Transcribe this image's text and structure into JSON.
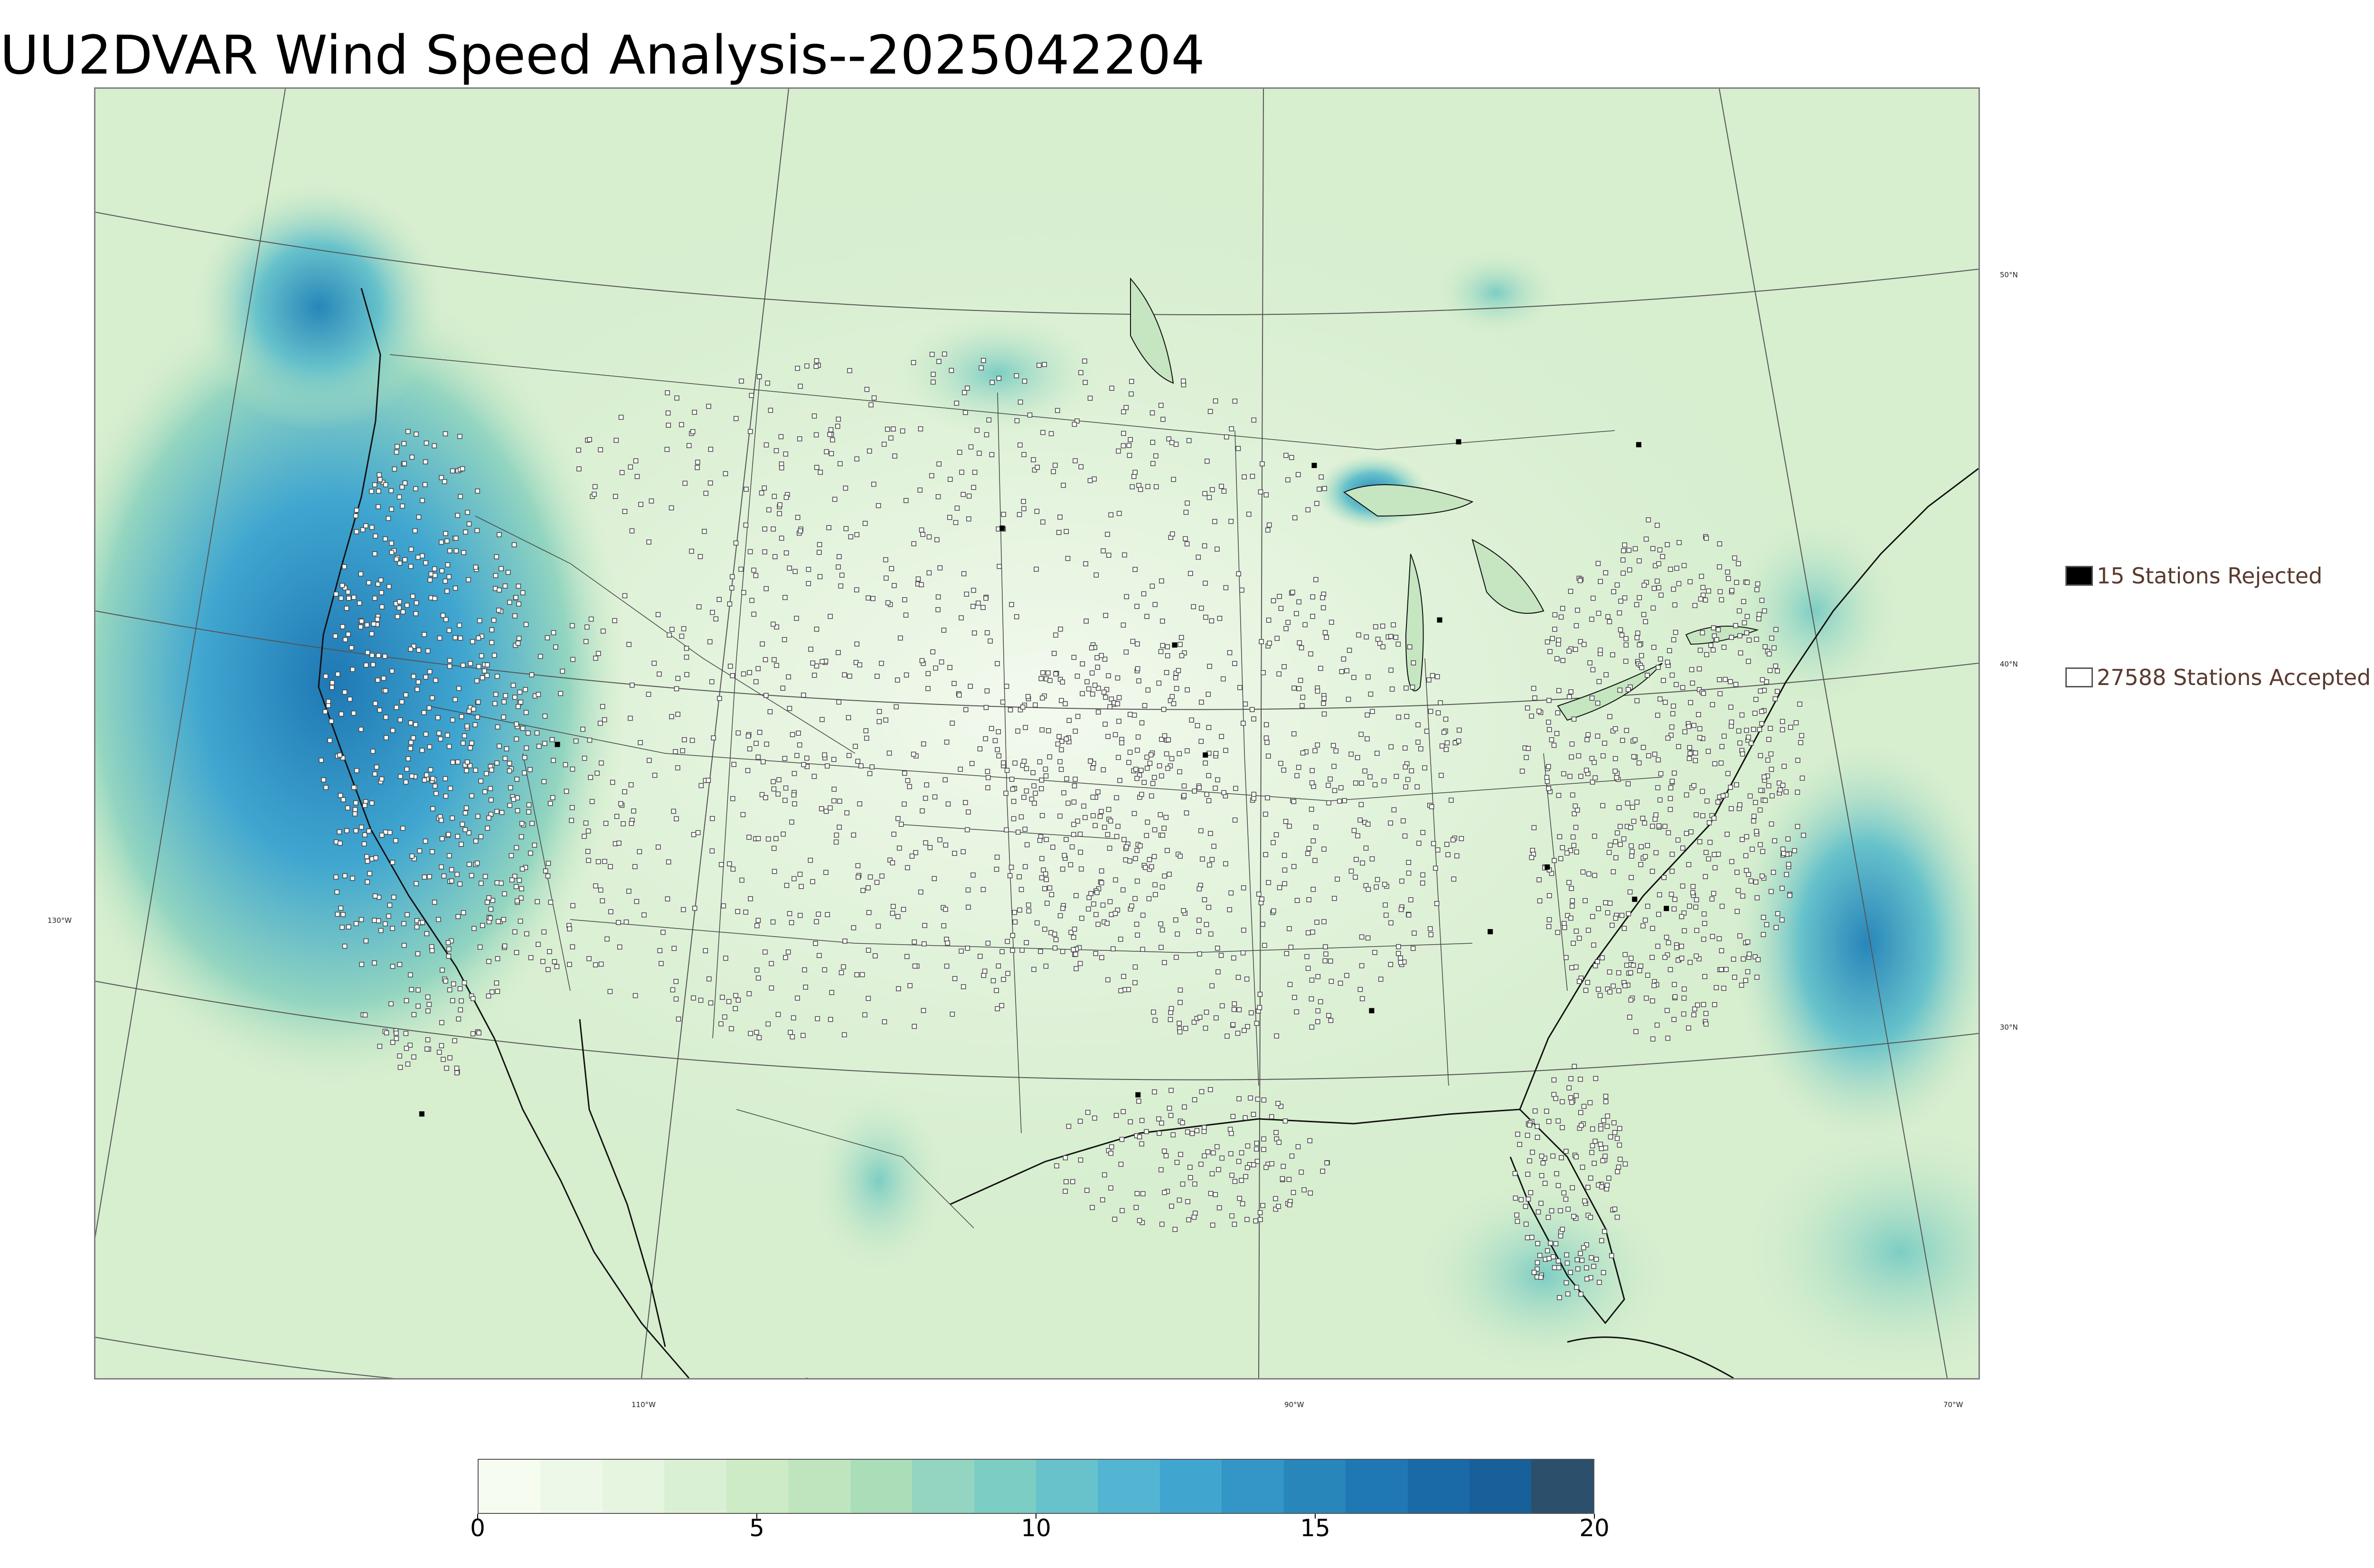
{
  "title": "UU2DVAR Wind Speed Analysis--2025042204",
  "legend": {
    "rejected_label": "15 Stations Rejected",
    "accepted_label": "27588 Stations Accepted",
    "rejected_color": "#000000",
    "accepted_color": "#ffffff"
  },
  "graticule": {
    "lat_labels": [
      "50°N",
      "40°N",
      "30°N"
    ],
    "lon_labels": [
      "130°W",
      "110°W",
      "90°W",
      "70°W"
    ]
  },
  "colorbar": {
    "min": 0,
    "max": 20,
    "tick_labels": [
      "0",
      "5",
      "10",
      "15",
      "20"
    ],
    "colors": [
      "#f7fcf0",
      "#eef8e9",
      "#e5f5df",
      "#daf0d4",
      "#cdebc5",
      "#bfe5bf",
      "#aadeb9",
      "#93d5c0",
      "#7ccdc4",
      "#67c2cb",
      "#53b5d2",
      "#40a6d0",
      "#3396c6",
      "#2886ba",
      "#1f78b4",
      "#1a6aa8",
      "#176099",
      "#2c4f6b"
    ]
  },
  "chart_data": {
    "type": "heatmap",
    "title": "UU2DVAR Wind Speed Analysis--2025042204",
    "colorbar_range": [
      0,
      20
    ],
    "colorbar_ticks": [
      0,
      5,
      10,
      15,
      20
    ],
    "series": [
      {
        "name": "15 Stations Rejected",
        "count": 15
      },
      {
        "name": "27588 Stations Accepted",
        "count": 27588
      }
    ]
  }
}
